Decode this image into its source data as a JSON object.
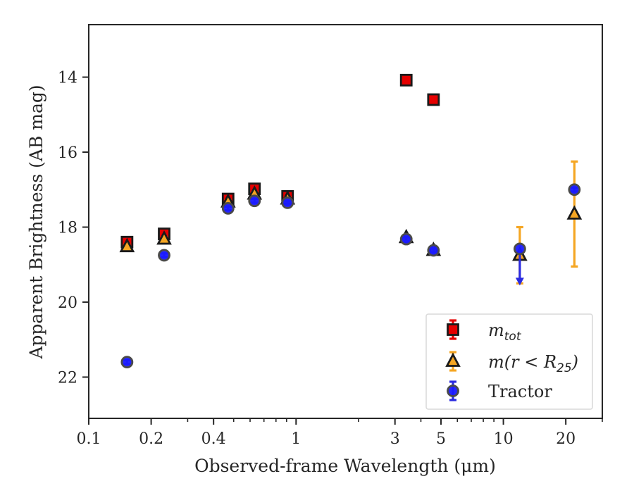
{
  "chart_data": {
    "type": "scatter",
    "xlabel": "Observed-frame Wavelength (μm)",
    "ylabel": "Apparent Brightness (AB mag)",
    "xscale": "log",
    "xlim": [
      0.1,
      30
    ],
    "ylim": [
      23.1,
      12.6
    ],
    "y_inverted": true,
    "grid": false,
    "legend_position": "lower-right",
    "x_ticks": [
      {
        "value": 0.1,
        "label": "0.1"
      },
      {
        "value": 0.2,
        "label": "0.2"
      },
      {
        "value": 0.4,
        "label": "0.4"
      },
      {
        "value": 1,
        "label": "1"
      },
      {
        "value": 3,
        "label": "3"
      },
      {
        "value": 5,
        "label": "5"
      },
      {
        "value": 10,
        "label": "10"
      },
      {
        "value": 20,
        "label": "20"
      }
    ],
    "y_ticks": [
      {
        "value": 14,
        "label": "14"
      },
      {
        "value": 16,
        "label": "16"
      },
      {
        "value": 18,
        "label": "18"
      },
      {
        "value": 20,
        "label": "20"
      },
      {
        "value": 22,
        "label": "22"
      }
    ],
    "series": [
      {
        "name": "m_tot",
        "legend_main": "m",
        "legend_sub": "tot",
        "marker": "square",
        "color": "#e60000",
        "errcolor": "#e60000",
        "points": [
          {
            "x": 0.153,
            "y": 18.4,
            "err": 0.05
          },
          {
            "x": 0.231,
            "y": 18.18,
            "err": 0.05
          },
          {
            "x": 0.47,
            "y": 17.25,
            "err": 0.05
          },
          {
            "x": 0.63,
            "y": 16.98,
            "err": 0.05
          },
          {
            "x": 0.91,
            "y": 17.18,
            "err": 0.05
          },
          {
            "x": 3.4,
            "y": 14.08,
            "err": 0.05
          },
          {
            "x": 4.6,
            "y": 14.6,
            "err": 0.05
          }
        ]
      },
      {
        "name": "m(r < R_25)",
        "legend_main": "m(r < R",
        "legend_sub": "25",
        "legend_tail": ")",
        "marker": "triangle",
        "color": "#f5a623",
        "errcolor": "#f5a623",
        "points": [
          {
            "x": 0.153,
            "y": 18.52,
            "err": 0.05
          },
          {
            "x": 0.231,
            "y": 18.32,
            "err": 0.05
          },
          {
            "x": 0.47,
            "y": 17.33,
            "err": 0.05
          },
          {
            "x": 0.63,
            "y": 17.12,
            "err": 0.05
          },
          {
            "x": 0.91,
            "y": 17.25,
            "err": 0.05
          },
          {
            "x": 3.4,
            "y": 18.28,
            "err": 0.05
          },
          {
            "x": 4.6,
            "y": 18.62,
            "err": 0.05
          },
          {
            "x": 12,
            "y": 18.75,
            "err": 0.75
          },
          {
            "x": 22,
            "y": 17.65,
            "err": 1.4
          }
        ]
      },
      {
        "name": "Tractor",
        "legend_main": "Tractor",
        "marker": "circle",
        "color": "#1a1aff",
        "errcolor": "#2a2ae0",
        "points": [
          {
            "x": 0.153,
            "y": 21.6,
            "err": 0.05
          },
          {
            "x": 0.231,
            "y": 18.75,
            "err": 0.05
          },
          {
            "x": 0.47,
            "y": 17.5,
            "err": 0.05
          },
          {
            "x": 0.63,
            "y": 17.3,
            "err": 0.05
          },
          {
            "x": 0.91,
            "y": 17.35,
            "err": 0.05
          },
          {
            "x": 3.4,
            "y": 18.32,
            "err": 0.05
          },
          {
            "x": 4.6,
            "y": 18.62,
            "err": 0.05
          },
          {
            "x": 12,
            "y": 18.58,
            "uplim_to": 19.5
          },
          {
            "x": 22,
            "y": 17.0,
            "err": 0.05
          }
        ]
      }
    ]
  }
}
